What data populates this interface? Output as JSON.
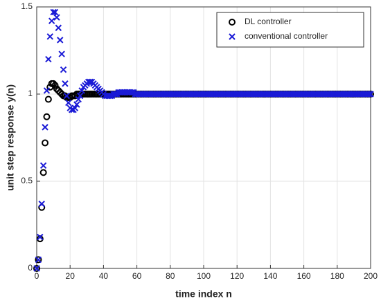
{
  "chart_data": {
    "type": "scatter",
    "xlabel": "time index n",
    "ylabel": "unit step response y(n)",
    "xlim": [
      0,
      200
    ],
    "xticks": [
      0,
      20,
      40,
      60,
      80,
      100,
      120,
      140,
      160,
      180,
      200
    ],
    "ylim": [
      0,
      1.5
    ],
    "yticks": [
      0,
      0.5,
      1,
      1.5
    ],
    "grid": true,
    "legend": "upper right",
    "x": [
      0,
      1,
      2,
      3,
      4,
      5,
      6,
      7,
      8,
      9,
      10,
      11,
      12,
      13,
      14,
      15,
      16,
      17,
      18,
      19,
      20,
      21,
      22,
      23,
      24,
      25,
      26,
      27,
      28,
      29,
      30,
      31,
      32,
      33,
      34,
      35,
      36,
      37,
      38,
      39,
      40,
      41,
      42,
      43,
      44,
      45,
      46,
      47,
      48,
      49,
      50,
      51,
      52,
      53,
      54,
      55,
      56,
      57,
      58,
      59,
      60,
      61,
      62,
      63,
      64,
      65,
      66,
      67,
      68,
      69,
      70,
      71,
      72,
      73,
      74,
      75,
      76,
      77,
      78,
      79,
      80,
      81,
      82,
      83,
      84,
      85,
      86,
      87,
      88,
      89,
      90,
      91,
      92,
      93,
      94,
      95,
      96,
      97,
      98,
      99,
      100,
      101,
      102,
      103,
      104,
      105,
      106,
      107,
      108,
      109,
      110,
      111,
      112,
      113,
      114,
      115,
      116,
      117,
      118,
      119,
      120,
      121,
      122,
      123,
      124,
      125,
      126,
      127,
      128,
      129,
      130,
      131,
      132,
      133,
      134,
      135,
      136,
      137,
      138,
      139,
      140,
      141,
      142,
      143,
      144,
      145,
      146,
      147,
      148,
      149,
      150,
      151,
      152,
      153,
      154,
      155,
      156,
      157,
      158,
      159,
      160,
      161,
      162,
      163,
      164,
      165,
      166,
      167,
      168,
      169,
      170,
      171,
      172,
      173,
      174,
      175,
      176,
      177,
      178,
      179,
      180,
      181,
      182,
      183,
      184,
      185,
      186,
      187,
      188,
      189,
      190,
      191,
      192,
      193,
      194,
      195,
      196,
      197,
      198,
      199,
      200
    ],
    "series": [
      {
        "name": "DL controller",
        "color": "#000000",
        "marker": "o",
        "values": [
          0,
          0.05,
          0.17,
          0.35,
          0.55,
          0.72,
          0.87,
          0.97,
          1.04,
          1.06,
          1.06,
          1.05,
          1.03,
          1.02,
          1.01,
          1,
          0.99,
          0.99,
          0.98,
          0.98,
          0.98,
          0.99,
          0.99,
          0.99,
          1,
          1,
          1,
          1,
          1,
          1,
          1,
          1,
          1,
          1,
          1,
          1,
          1,
          1,
          1,
          1,
          1,
          1,
          1,
          1,
          1,
          1,
          1,
          1,
          1,
          1,
          1,
          1,
          1,
          1,
          1,
          1,
          1,
          1,
          1,
          1,
          1,
          1,
          1,
          1,
          1,
          1,
          1,
          1,
          1,
          1,
          1,
          1,
          1,
          1,
          1,
          1,
          1,
          1,
          1,
          1,
          1,
          1,
          1,
          1,
          1,
          1,
          1,
          1,
          1,
          1,
          1,
          1,
          1,
          1,
          1,
          1,
          1,
          1,
          1,
          1,
          1,
          1,
          1,
          1,
          1,
          1,
          1,
          1,
          1,
          1,
          1,
          1,
          1,
          1,
          1,
          1,
          1,
          1,
          1,
          1,
          1,
          1,
          1,
          1,
          1,
          1,
          1,
          1,
          1,
          1,
          1,
          1,
          1,
          1,
          1,
          1,
          1,
          1,
          1,
          1,
          1,
          1,
          1,
          1,
          1,
          1,
          1,
          1,
          1,
          1,
          1,
          1,
          1,
          1,
          1,
          1,
          1,
          1,
          1,
          1,
          1,
          1,
          1,
          1,
          1,
          1,
          1,
          1,
          1,
          1,
          1,
          1,
          1,
          1,
          1,
          1,
          1,
          1,
          1,
          1,
          1,
          1,
          1,
          1,
          1,
          1,
          1,
          1,
          1,
          1,
          1,
          1,
          1,
          1,
          1,
          1,
          1,
          1,
          1,
          1,
          1
        ]
      },
      {
        "name": "conventional controller",
        "color": "#1a1ad6",
        "marker": "x",
        "values": [
          0,
          0.05,
          0.18,
          0.37,
          0.59,
          0.81,
          1.02,
          1.2,
          1.33,
          1.42,
          1.47,
          1.47,
          1.44,
          1.38,
          1.31,
          1.23,
          1.14,
          1.06,
          0.99,
          0.95,
          0.92,
          0.91,
          0.91,
          0.92,
          0.94,
          0.97,
          0.99,
          1.02,
          1.04,
          1.05,
          1.06,
          1.07,
          1.07,
          1.07,
          1.06,
          1.05,
          1.04,
          1.03,
          1.02,
          1.01,
          1,
          0.99,
          0.99,
          0.99,
          0.99,
          0.99,
          1,
          1,
          1,
          1.01,
          1.01,
          1.01,
          1.01,
          1.01,
          1.01,
          1.01,
          1.01,
          1.01,
          1.01,
          1,
          1,
          1,
          1,
          1,
          1,
          1,
          1,
          1,
          1,
          1,
          1,
          1,
          1,
          1,
          1,
          1,
          1,
          1,
          1,
          1,
          1,
          1,
          1,
          1,
          1,
          1,
          1,
          1,
          1,
          1,
          1,
          1,
          1,
          1,
          1,
          1,
          1,
          1,
          1,
          1,
          1,
          1,
          1,
          1,
          1,
          1,
          1,
          1,
          1,
          1,
          1,
          1,
          1,
          1,
          1,
          1,
          1,
          1,
          1,
          1,
          1,
          1,
          1,
          1,
          1,
          1,
          1,
          1,
          1,
          1,
          1,
          1,
          1,
          1,
          1,
          1,
          1,
          1,
          1,
          1,
          1,
          1,
          1,
          1,
          1,
          1,
          1,
          1,
          1,
          1,
          1,
          1,
          1,
          1,
          1,
          1,
          1,
          1,
          1,
          1,
          1,
          1,
          1,
          1,
          1,
          1,
          1,
          1,
          1,
          1,
          1,
          1,
          1,
          1,
          1,
          1,
          1,
          1,
          1,
          1,
          1,
          1,
          1,
          1,
          1,
          1,
          1,
          1,
          1,
          1,
          1,
          1,
          1,
          1,
          1,
          1,
          1,
          1,
          1,
          1,
          1
        ]
      }
    ]
  }
}
